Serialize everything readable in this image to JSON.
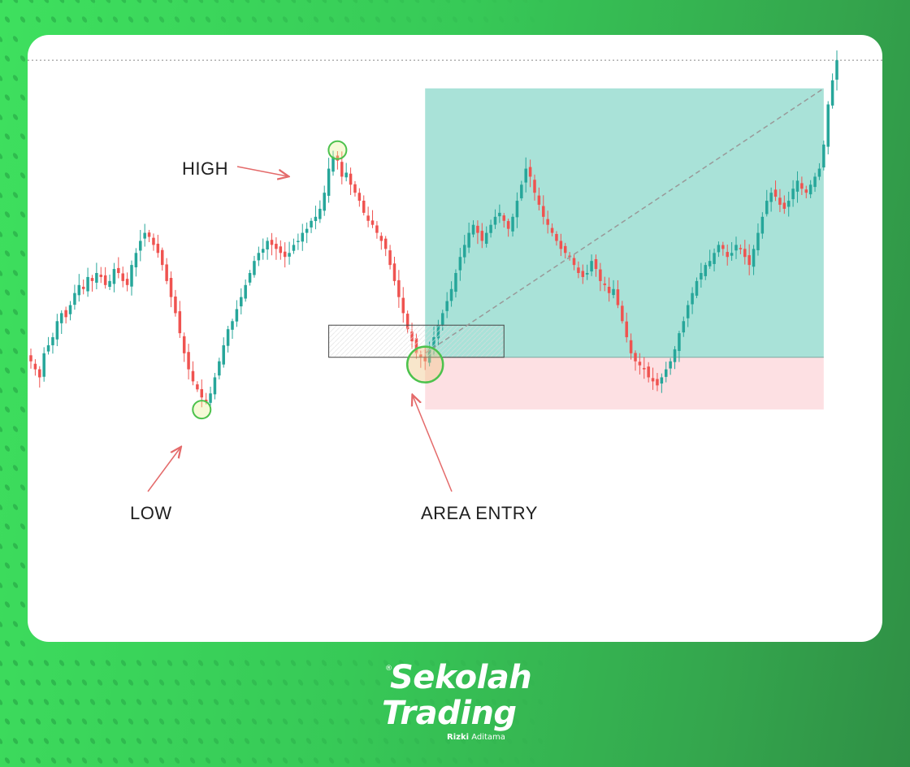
{
  "chart_data": {
    "type": "candlestick",
    "title": "",
    "xlabel": "",
    "ylabel": "",
    "y_range": [
      0,
      100
    ],
    "grid": false,
    "colors": {
      "up": "#26a69a",
      "down": "#ef5350",
      "target_zone": "#a9e2d8",
      "stop_zone": "#fde0e3",
      "marker": "#4cc24c"
    },
    "annotations": {
      "high": "HIGH",
      "low": "LOW",
      "entry": "AREA ENTRY"
    },
    "swing_points": {
      "low": {
        "bar": 39,
        "price": 18
      },
      "high": {
        "bar": 70,
        "price": 79
      },
      "entry": {
        "bar": 90,
        "price": 28
      }
    },
    "entry_box": {
      "from_bar": 68,
      "to_bar": 108,
      "top": 37,
      "bottom": 29
    },
    "target_zone": {
      "from_bar": 90,
      "to_bar": 181,
      "top": 96,
      "bottom": 29
    },
    "stop_zone": {
      "from_bar": 90,
      "to_bar": 181,
      "top": 29,
      "bottom": 16
    },
    "dashed_line": {
      "y": 103
    },
    "close": [
      28,
      26,
      24,
      30,
      32,
      34,
      38,
      40,
      39,
      42,
      45,
      47,
      46,
      49,
      48,
      50,
      49,
      47,
      48,
      51,
      50,
      48,
      47,
      52,
      55,
      58,
      60,
      59,
      57,
      55,
      52,
      48,
      44,
      40,
      35,
      30,
      26,
      23,
      21,
      19,
      18,
      20,
      24,
      28,
      32,
      36,
      38,
      41,
      44,
      47,
      50,
      53,
      55,
      56,
      58,
      57,
      56,
      55,
      54,
      55,
      57,
      58,
      60,
      61,
      63,
      64,
      66,
      70,
      76,
      79,
      78,
      74,
      75,
      72,
      70,
      68,
      65,
      63,
      62,
      60,
      58,
      56,
      52,
      48,
      44,
      40,
      36,
      33,
      30,
      29,
      28,
      31,
      34,
      37,
      40,
      43,
      46,
      50,
      54,
      57,
      60,
      62,
      60,
      58,
      60,
      62,
      64,
      65,
      63,
      61,
      64,
      68,
      72,
      76,
      74,
      70,
      67,
      64,
      62,
      60,
      58,
      56,
      55,
      54,
      52,
      50,
      49,
      50,
      53,
      51,
      48,
      47,
      45,
      46,
      42,
      38,
      34,
      30,
      28,
      27,
      26,
      24,
      23,
      22,
      24,
      26,
      28,
      31,
      35,
      38,
      42,
      45,
      48,
      50,
      52,
      53,
      55,
      57,
      56,
      54,
      55,
      57,
      56,
      54,
      52,
      56,
      60,
      64,
      68,
      70,
      69,
      67,
      66,
      68,
      71,
      73,
      71,
      70,
      72,
      74,
      76,
      82,
      92,
      98,
      103
    ]
  },
  "brand": {
    "registered": "®",
    "line1": "Sekolah",
    "line2": "Trading",
    "sub_bold": "Rizki",
    "sub_rest": "Aditama"
  }
}
